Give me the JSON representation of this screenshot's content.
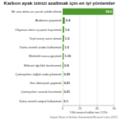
{
  "chart_data": {
    "type": "bar",
    "orientation": "horizontal",
    "title": "Karbon ayak izinizi azaltmak için en iyi yöntemler",
    "x_label": "Yıllık tasarruf edilen ton CO2e",
    "source": "Kaynak: Wynes ve Nicholas, Environmental Research Letters (2017)",
    "categories": [
      "Bir ana daha az çocuk sahibi olmak",
      "Arabasız yaşamak",
      "Okyanus ötesi uçuştan kaçınmak",
      "Yeşil enerji satın almak",
      "Daha verimli araba kullanmak",
      "Elektrikli araca geçmek",
      "Bitkisel ağırlıklı beslenmek",
      "Çamaşırları soğuk suda yıkamak",
      "Geri dönüşüm yapmak",
      "Çamaşırları asarak kurutmak",
      "Daha verimli ampul kullanmak"
    ],
    "values": [
      58.6,
      2.4,
      1.6,
      1.5,
      1.2,
      1.15,
      0.8,
      0.25,
      0.21,
      0.21,
      0.1
    ],
    "color": "#4e9a2e",
    "xlim": [
      0,
      60
    ],
    "xticks": [
      0,
      20,
      40,
      60
    ],
    "grid": true,
    "data_labels": true
  }
}
